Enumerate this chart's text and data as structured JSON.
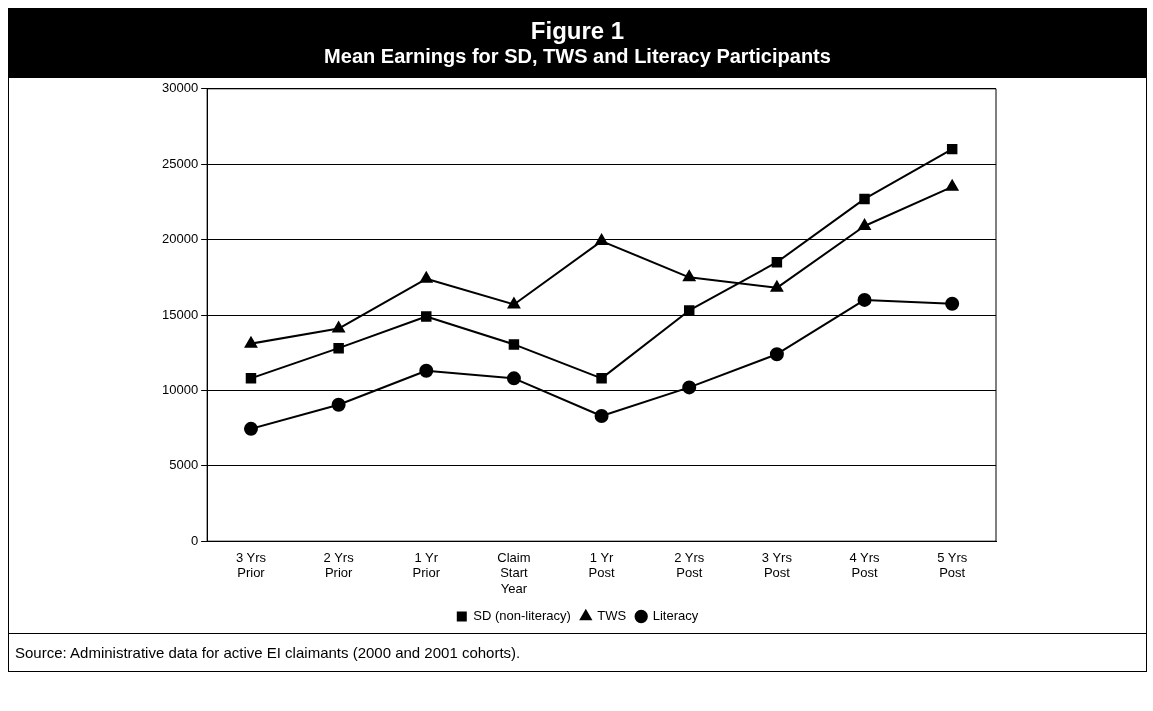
{
  "chart_data": {
    "type": "line",
    "title": "Figure 1",
    "subtitle": "Mean Earnings for SD, TWS and Literacy Participants",
    "categories": [
      "3 Yrs Prior",
      "2 Yrs Prior",
      "1 Yr Prior",
      "Claim Start Year",
      "1 Yr Post",
      "2 Yrs Post",
      "3 Yrs Post",
      "4 Yrs Post",
      "5 Yrs Post"
    ],
    "series": [
      {
        "name": "SD (non-literacy)",
        "color": "#000000",
        "marker": "square",
        "values": [
          10800,
          12800,
          14900,
          13050,
          10800,
          15300,
          18500,
          22700,
          26000
        ]
      },
      {
        "name": "TWS",
        "color": "#000000",
        "marker": "triangle",
        "values": [
          13100,
          14100,
          17400,
          15700,
          19900,
          17500,
          16800,
          20900,
          23500
        ]
      },
      {
        "name": "Literacy",
        "color": "#000000",
        "marker": "circle",
        "values": [
          7450,
          9050,
          11300,
          10800,
          8300,
          10200,
          12400,
          16000,
          15750
        ]
      }
    ],
    "ylim": [
      0,
      30000
    ],
    "yticks": [
      0,
      5000,
      10000,
      15000,
      20000,
      25000,
      30000
    ],
    "grid": "y",
    "legend": "bottom",
    "line_style": "solid",
    "annotations": [
      "Source: Administrative data for active EI claimants (2000 and 2001 cohorts)."
    ]
  }
}
